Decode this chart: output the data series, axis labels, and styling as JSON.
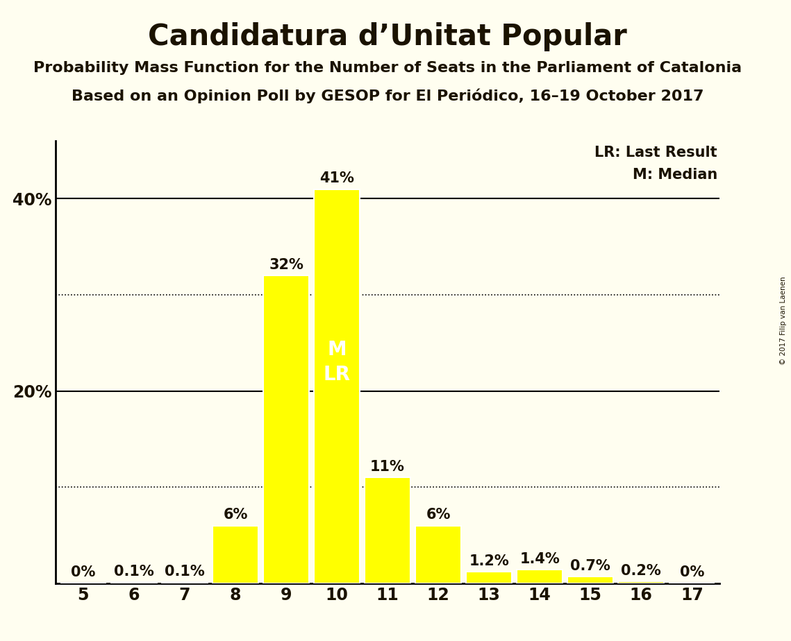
{
  "title": "Candidatura d’Unitat Popular",
  "subtitle1": "Probability Mass Function for the Number of Seats in the Parliament of Catalonia",
  "subtitle2": "Based on an Opinion Poll by GESOP for El Periódico, 16–19 October 2017",
  "copyright": "© 2017 Filip van Laenen",
  "seats": [
    5,
    6,
    7,
    8,
    9,
    10,
    11,
    12,
    13,
    14,
    15,
    16,
    17
  ],
  "probabilities": [
    0.0,
    0.1,
    0.1,
    6.0,
    32.0,
    41.0,
    11.0,
    6.0,
    1.2,
    1.4,
    0.7,
    0.2,
    0.0
  ],
  "bar_color": "#FFFF00",
  "bar_edge_color": "#FFFFFF",
  "background_color": "#FFFEF0",
  "text_color": "#1a1200",
  "title_fontsize": 30,
  "subtitle_fontsize": 16,
  "label_fontsize": 15,
  "ytick_labels_shown": [
    "40%",
    "20%"
  ],
  "ytick_values_shown": [
    40,
    20
  ],
  "ylim": [
    0,
    46
  ],
  "median_seat": 10,
  "last_result_seat": 10,
  "legend_lr": "LR: Last Result",
  "legend_m": "M: Median",
  "solid_line_y": [
    40,
    20
  ],
  "dotted_line_y": [
    30,
    10
  ]
}
